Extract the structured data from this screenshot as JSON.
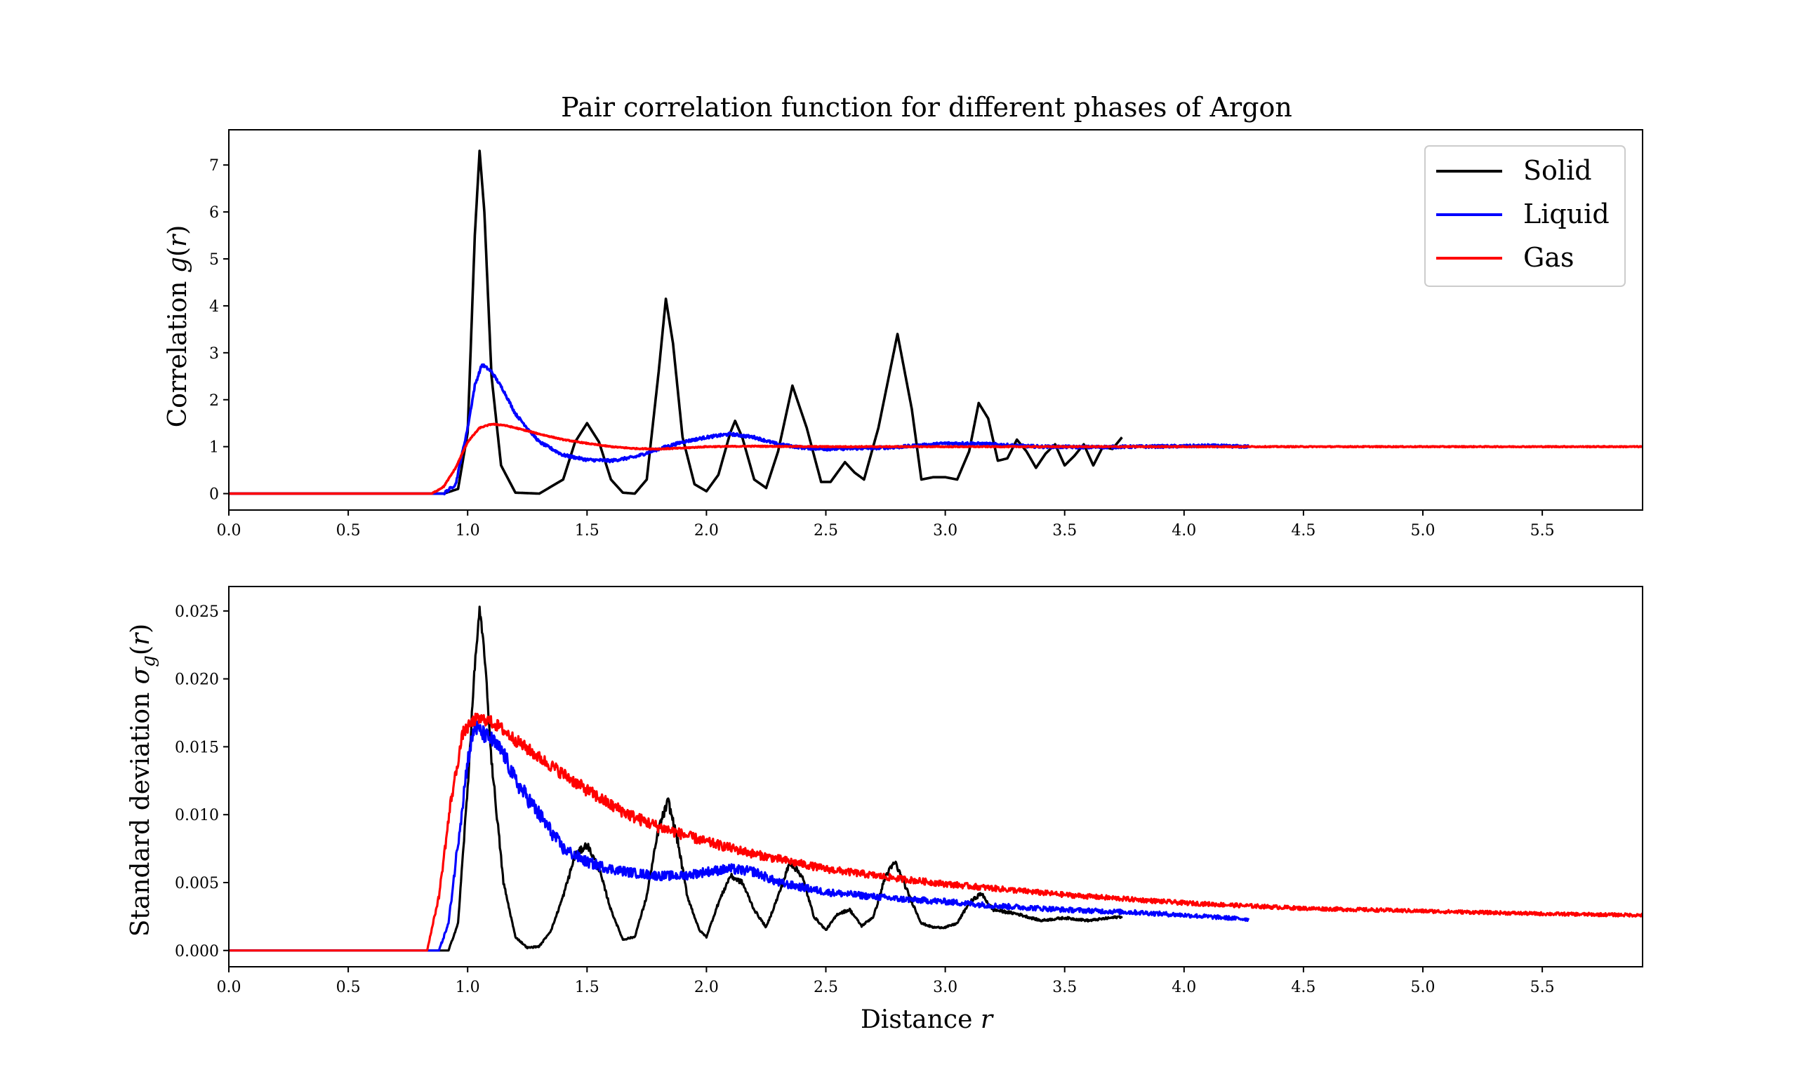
{
  "chart_data": [
    {
      "type": "line",
      "title": "Pair correlation function for different phases of Argon",
      "xlabel": "",
      "ylabel": "Correlation g(r)",
      "xlim": [
        0.0,
        5.92
      ],
      "ylim": [
        -0.35,
        7.75
      ],
      "x_ticks": [
        "0.0",
        "0.5",
        "1.0",
        "1.5",
        "2.0",
        "2.5",
        "3.0",
        "3.5",
        "4.0",
        "4.5",
        "5.0",
        "5.5"
      ],
      "y_ticks": [
        "0",
        "1",
        "2",
        "3",
        "4",
        "5",
        "6",
        "7"
      ],
      "grid": false,
      "legend": {
        "placement": "top-right",
        "entries": [
          "Solid",
          "Liquid",
          "Gas"
        ]
      },
      "series": [
        {
          "name": "Solid",
          "color": "#000000",
          "x": [
            0.0,
            0.9,
            0.96,
            1.0,
            1.03,
            1.05,
            1.07,
            1.1,
            1.14,
            1.2,
            1.3,
            1.4,
            1.45,
            1.5,
            1.55,
            1.6,
            1.65,
            1.7,
            1.75,
            1.8,
            1.83,
            1.86,
            1.9,
            1.95,
            2.0,
            2.05,
            2.1,
            2.12,
            2.15,
            2.2,
            2.25,
            2.3,
            2.36,
            2.42,
            2.48,
            2.52,
            2.58,
            2.62,
            2.66,
            2.72,
            2.8,
            2.86,
            2.9,
            2.95,
            3.0,
            3.05,
            3.1,
            3.14,
            3.18,
            3.22,
            3.26,
            3.3,
            3.34,
            3.38,
            3.42,
            3.46,
            3.5,
            3.54,
            3.58,
            3.62,
            3.66,
            3.7,
            3.74
          ],
          "y": [
            0.0,
            0.0,
            0.1,
            1.3,
            5.5,
            7.3,
            6.0,
            2.5,
            0.6,
            0.02,
            0.0,
            0.3,
            1.1,
            1.5,
            1.1,
            0.3,
            0.02,
            0.0,
            0.3,
            2.6,
            4.15,
            3.2,
            1.2,
            0.2,
            0.05,
            0.4,
            1.3,
            1.55,
            1.2,
            0.3,
            0.12,
            0.9,
            2.3,
            1.4,
            0.25,
            0.25,
            0.67,
            0.45,
            0.3,
            1.4,
            3.4,
            1.8,
            0.3,
            0.35,
            0.35,
            0.3,
            0.9,
            1.93,
            1.6,
            0.7,
            0.75,
            1.15,
            0.9,
            0.55,
            0.85,
            1.05,
            0.6,
            0.8,
            1.05,
            0.6,
            1.0,
            0.95,
            1.2
          ]
        },
        {
          "name": "Liquid",
          "color": "#0000ff",
          "x": [
            0.0,
            0.9,
            0.95,
            1.0,
            1.03,
            1.06,
            1.1,
            1.15,
            1.2,
            1.3,
            1.4,
            1.5,
            1.6,
            1.7,
            1.8,
            1.9,
            2.0,
            2.1,
            2.2,
            2.3,
            2.4,
            2.5,
            2.6,
            2.7,
            2.8,
            2.9,
            3.0,
            3.1,
            3.2,
            3.3,
            3.4,
            3.6,
            3.8,
            4.0,
            4.1,
            4.27
          ],
          "y": [
            0.0,
            0.0,
            0.2,
            1.4,
            2.3,
            2.75,
            2.6,
            2.2,
            1.7,
            1.1,
            0.82,
            0.72,
            0.7,
            0.78,
            0.95,
            1.1,
            1.2,
            1.27,
            1.2,
            1.05,
            0.98,
            0.95,
            0.96,
            0.97,
            0.99,
            1.03,
            1.07,
            1.07,
            1.05,
            1.02,
            1.0,
            0.99,
            1.0,
            1.01,
            1.02,
            1.0
          ]
        },
        {
          "name": "Gas",
          "color": "#ff0000",
          "x": [
            0.0,
            0.85,
            0.9,
            0.95,
            1.0,
            1.05,
            1.1,
            1.15,
            1.2,
            1.3,
            1.4,
            1.5,
            1.6,
            1.7,
            1.8,
            1.9,
            2.0,
            2.2,
            2.5,
            3.0,
            4.0,
            5.0,
            5.92
          ],
          "y": [
            0.0,
            0.0,
            0.15,
            0.55,
            1.1,
            1.4,
            1.48,
            1.46,
            1.4,
            1.27,
            1.15,
            1.07,
            1.0,
            0.96,
            0.95,
            0.97,
            1.0,
            1.01,
            1.0,
            1.0,
            1.0,
            1.0,
            1.0
          ]
        }
      ]
    },
    {
      "type": "line",
      "title": "",
      "xlabel": "Distance r",
      "ylabel": "Standard deviation σg(r)",
      "xlim": [
        0.0,
        5.92
      ],
      "ylim": [
        -0.0012,
        0.0268
      ],
      "x_ticks": [
        "0.0",
        "0.5",
        "1.0",
        "1.5",
        "2.0",
        "2.5",
        "3.0",
        "3.5",
        "4.0",
        "4.5",
        "5.0",
        "5.5"
      ],
      "y_ticks": [
        "0.000",
        "0.005",
        "0.010",
        "0.015",
        "0.020",
        "0.025"
      ],
      "grid": false,
      "series": [
        {
          "name": "Solid",
          "color": "#000000",
          "x": [
            0.0,
            0.92,
            0.96,
            1.0,
            1.03,
            1.05,
            1.07,
            1.1,
            1.15,
            1.2,
            1.25,
            1.3,
            1.35,
            1.4,
            1.45,
            1.5,
            1.55,
            1.6,
            1.65,
            1.7,
            1.75,
            1.8,
            1.84,
            1.88,
            1.92,
            1.97,
            2.0,
            2.05,
            2.1,
            2.15,
            2.2,
            2.25,
            2.3,
            2.35,
            2.4,
            2.45,
            2.5,
            2.55,
            2.6,
            2.65,
            2.7,
            2.75,
            2.79,
            2.85,
            2.9,
            2.95,
            3.0,
            3.05,
            3.1,
            3.15,
            3.2,
            3.3,
            3.4,
            3.5,
            3.6,
            3.74
          ],
          "y": [
            0.0,
            0.0,
            0.002,
            0.012,
            0.021,
            0.025,
            0.022,
            0.014,
            0.005,
            0.001,
            0.0002,
            0.0003,
            0.0015,
            0.004,
            0.007,
            0.0078,
            0.006,
            0.003,
            0.0008,
            0.001,
            0.004,
            0.009,
            0.011,
            0.008,
            0.004,
            0.0015,
            0.001,
            0.0035,
            0.0055,
            0.005,
            0.003,
            0.0017,
            0.004,
            0.0065,
            0.0055,
            0.0025,
            0.0015,
            0.0027,
            0.003,
            0.0018,
            0.0025,
            0.0055,
            0.0065,
            0.004,
            0.002,
            0.0017,
            0.0017,
            0.002,
            0.0035,
            0.0042,
            0.003,
            0.0027,
            0.0022,
            0.0024,
            0.0022,
            0.0025
          ]
        },
        {
          "name": "Liquid",
          "color": "#0000ff",
          "x": [
            0.0,
            0.88,
            0.92,
            0.96,
            1.0,
            1.03,
            1.06,
            1.1,
            1.15,
            1.2,
            1.3,
            1.4,
            1.5,
            1.6,
            1.7,
            1.8,
            1.9,
            2.0,
            2.1,
            2.2,
            2.3,
            2.5,
            2.8,
            3.0,
            3.2,
            3.5,
            3.8,
            4.0,
            4.27
          ],
          "y": [
            0.0,
            0.0,
            0.002,
            0.008,
            0.014,
            0.0165,
            0.016,
            0.0155,
            0.0145,
            0.0125,
            0.01,
            0.0075,
            0.0065,
            0.006,
            0.0057,
            0.0055,
            0.0055,
            0.0058,
            0.006,
            0.0058,
            0.005,
            0.0043,
            0.0038,
            0.0036,
            0.0033,
            0.003,
            0.0028,
            0.0026,
            0.0023
          ]
        },
        {
          "name": "Gas",
          "color": "#ff0000",
          "x": [
            0.0,
            0.83,
            0.88,
            0.93,
            0.98,
            1.03,
            1.08,
            1.13,
            1.2,
            1.3,
            1.4,
            1.5,
            1.6,
            1.7,
            1.8,
            2.0,
            2.2,
            2.5,
            2.8,
            3.0,
            3.5,
            4.0,
            4.5,
            5.0,
            5.5,
            5.92
          ],
          "y": [
            0.0,
            0.0,
            0.004,
            0.011,
            0.016,
            0.017,
            0.017,
            0.0165,
            0.0155,
            0.0142,
            0.013,
            0.0118,
            0.0107,
            0.0098,
            0.0091,
            0.008,
            0.0071,
            0.006,
            0.0053,
            0.0049,
            0.0041,
            0.0035,
            0.0031,
            0.0029,
            0.0027,
            0.0026
          ]
        }
      ]
    }
  ]
}
